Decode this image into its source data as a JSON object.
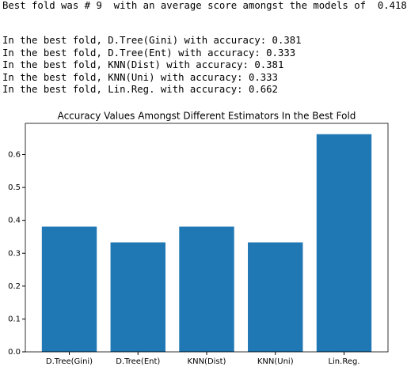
{
  "summary": "Best fold was # 9  with an average score amongst the models of  0.418",
  "output_lines": [
    "In the best fold, D.Tree(Gini) with accuracy: 0.381",
    "In the best fold, D.Tree(Ent) with accuracy: 0.333",
    "In the best fold, KNN(Dist) with accuracy: 0.381",
    "In the best fold, KNN(Uni) with accuracy: 0.333",
    "In the best fold, Lin.Reg. with accuracy: 0.662"
  ],
  "chart_data": {
    "type": "bar",
    "title": "Accuracy Values Amongst Different Estimators In the Best Fold",
    "categories": [
      "D.Tree(Gini)",
      "D.Tree(Ent)",
      "KNN(Dist)",
      "KNN(Uni)",
      "Lin.Reg."
    ],
    "values": [
      0.381,
      0.333,
      0.381,
      0.333,
      0.662
    ],
    "color": "#1f77b4",
    "ylim": [
      0,
      0.695
    ],
    "yticks": [
      {
        "value": 0,
        "label": "0.0"
      },
      0.1,
      0.2,
      0.3,
      0.4,
      0.5,
      0.6
    ]
  }
}
